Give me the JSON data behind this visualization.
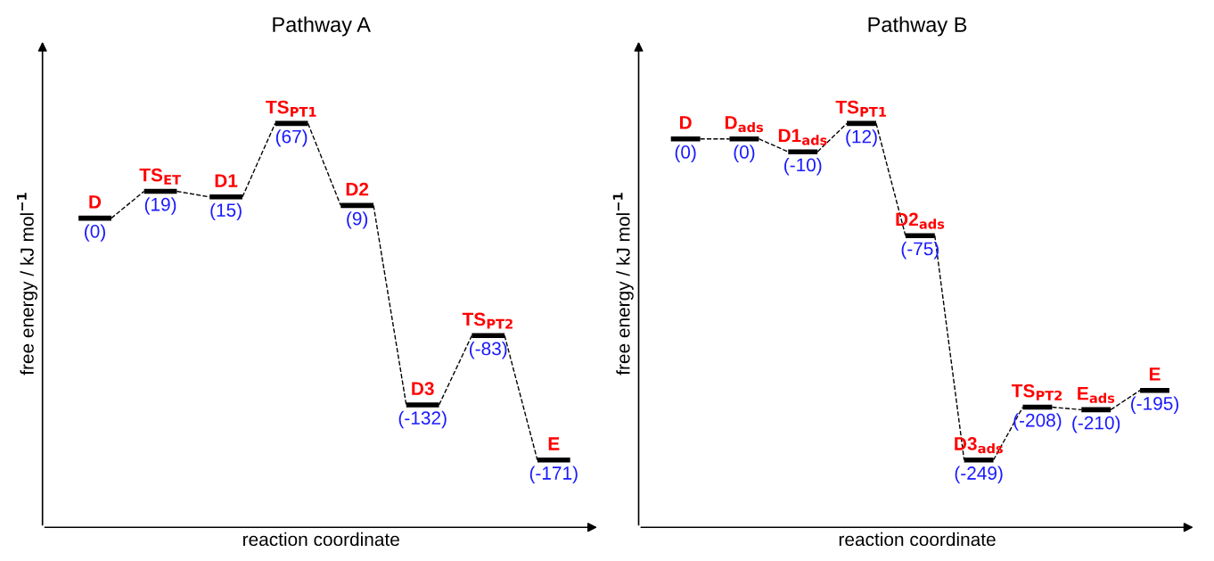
{
  "chart_data": [
    {
      "type": "other",
      "title": "Pathway A",
      "xlabel": "reaction coordinate",
      "ylabel": "free energy / kJ mol$^{−1}$",
      "color": "#000000",
      "categories": [
        "D",
        "TS$_{ET}$",
        "D1",
        "TS$_{PT1}$",
        "D2",
        "D3",
        "TS$_{PT2}$",
        "E"
      ],
      "values": [
        0,
        19,
        15,
        67,
        9,
        -132,
        -83,
        -171
      ],
      "value_labels": [
        "(0)",
        "(19)",
        "(15)",
        "(67)",
        "(9)",
        "(-132)",
        "(-83)",
        "(-171)"
      ]
    },
    {
      "type": "other",
      "title": "Pathway B",
      "xlabel": "reaction coordinate",
      "ylabel": "free energy / kJ mol$^{−1}$",
      "color": "#000000",
      "categories": [
        "D",
        "D$_{ads}$",
        "D1$_{ads}$",
        "TS$_{PT1}$",
        "D2$_{ads}$",
        "D3$_{ads}$",
        "TS$_{PT2}$",
        "E$_{ads}$",
        "E"
      ],
      "values": [
        0,
        0,
        -10,
        12,
        -75,
        -249,
        -208,
        -210,
        -195
      ],
      "value_labels": [
        "(0)",
        "(0)",
        "(-10)",
        "(12)",
        "(-75)",
        "(-249)",
        "(-208)",
        "(-210)",
        "(-195)"
      ]
    }
  ]
}
